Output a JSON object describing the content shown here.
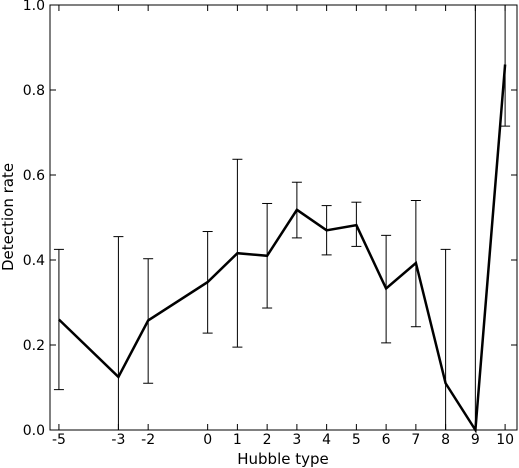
{
  "chart_data": {
    "type": "line",
    "title": "",
    "xlabel": "Hubble type",
    "ylabel": "Detection rate",
    "xlim": [
      -5.3,
      10.4
    ],
    "ylim": [
      0,
      1.0
    ],
    "x_ticks": [
      -5,
      -3,
      -2,
      0,
      1,
      2,
      3,
      4,
      5,
      6,
      7,
      8,
      9,
      10
    ],
    "y_ticks": [
      0.0,
      0.2,
      0.4,
      0.6,
      0.8,
      1.0
    ],
    "y_tick_labels": [
      "0.0",
      "0.2",
      "0.4",
      "0.6",
      "0.8",
      "1.0"
    ],
    "grid": false,
    "legend": false,
    "series": [
      {
        "x": [
          -5,
          -3,
          -2,
          0,
          1,
          2,
          3,
          4,
          5,
          6,
          7,
          8,
          9,
          10
        ],
        "y": [
          0.26,
          0.125,
          0.258,
          0.348,
          0.416,
          0.41,
          0.518,
          0.47,
          0.482,
          0.333,
          0.393,
          0.11,
          0.0,
          0.86
        ],
        "err_low": [
          0.095,
          0.0,
          0.11,
          0.228,
          0.195,
          0.287,
          0.452,
          0.412,
          0.432,
          0.205,
          0.243,
          0.0,
          0.0,
          0.715
        ],
        "err_high": [
          0.425,
          0.455,
          0.403,
          0.467,
          0.637,
          0.533,
          0.583,
          0.528,
          0.536,
          0.458,
          0.54,
          0.425,
          1.0,
          1.0
        ]
      }
    ]
  }
}
